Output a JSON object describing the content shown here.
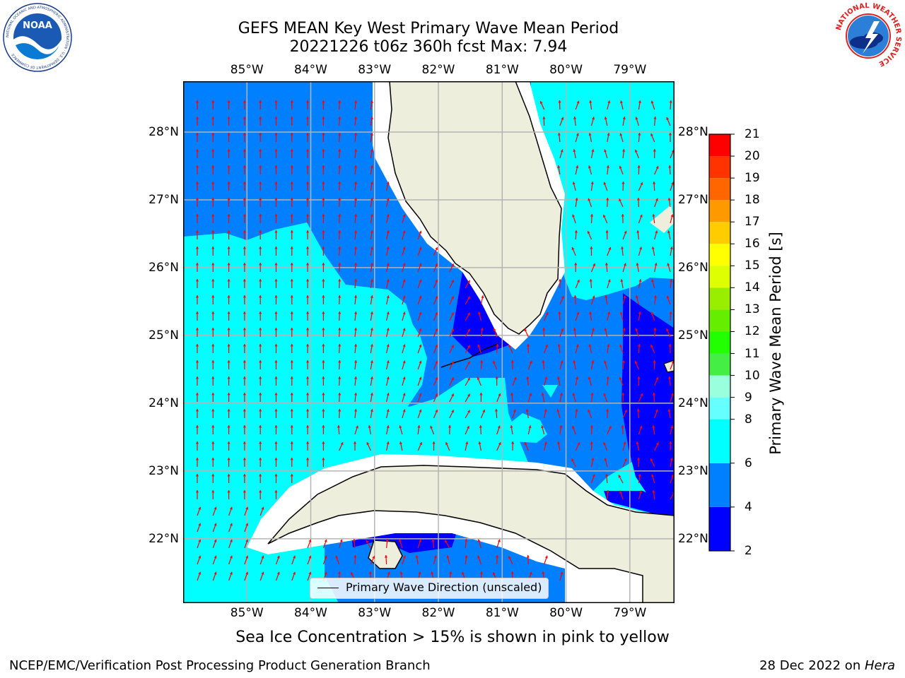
{
  "title": {
    "line1": "GEFS MEAN Key West Primary Wave Mean Period",
    "line2": "20221226 t06z 360h fcst   Max: 7.94"
  },
  "logos": {
    "left": "noaa-logo",
    "right": "national-weather-service-logo",
    "left_text": "NOAA",
    "left_ring": "NATIONAL OCEANIC AND ATMOSPHERIC ADMINISTRATION · U.S. DEPARTMENT OF COMMERCE",
    "right_ring": "NATIONAL WEATHER SERVICE"
  },
  "map": {
    "lon_labels": [
      "85°W",
      "84°W",
      "83°W",
      "82°W",
      "81°W",
      "80°W",
      "79°W"
    ],
    "lat_labels": [
      "28°N",
      "27°N",
      "26°N",
      "25°N",
      "24°N",
      "23°N",
      "22°N"
    ],
    "lon_values": [
      -85,
      -84,
      -83,
      -82,
      -81,
      -80,
      -79
    ],
    "lat_values": [
      28,
      27,
      26,
      25,
      24,
      23,
      22
    ],
    "lon_range": [
      -86,
      -78.3
    ],
    "lat_range": [
      21.05,
      28.75
    ],
    "legend_text": "Primary Wave Direction (unscaled)",
    "colors": {
      "band_2_4": "#0000ff",
      "band_4_6": "#0080ff",
      "band_6_8": "#00ffff",
      "land": "#eeeedc",
      "arrows": "#ff0000",
      "grid": "#b4b4b4"
    }
  },
  "colorbar": {
    "label": "Primary Wave Mean Period [s]",
    "ticks": [
      "21",
      "20",
      "19",
      "18",
      "17",
      "16",
      "15",
      "14",
      "13",
      "12",
      "11",
      "10",
      "9",
      "8",
      "6",
      "4",
      "2"
    ],
    "bands": [
      {
        "from": 2,
        "to": 4,
        "color": "#0000ff"
      },
      {
        "from": 4,
        "to": 6,
        "color": "#0080ff"
      },
      {
        "from": 6,
        "to": 8,
        "color": "#00ffff"
      },
      {
        "from": 8,
        "to": 9,
        "color": "#66ffff"
      },
      {
        "from": 9,
        "to": 10,
        "color": "#99ffdd"
      },
      {
        "from": 10,
        "to": 11,
        "color": "#44ee44"
      },
      {
        "from": 11,
        "to": 12,
        "color": "#22ff00"
      },
      {
        "from": 12,
        "to": 13,
        "color": "#66ee00"
      },
      {
        "from": 13,
        "to": 14,
        "color": "#99ee00"
      },
      {
        "from": 14,
        "to": 15,
        "color": "#ddff00"
      },
      {
        "from": 15,
        "to": 16,
        "color": "#ffff00"
      },
      {
        "from": 16,
        "to": 17,
        "color": "#ffcc00"
      },
      {
        "from": 17,
        "to": 18,
        "color": "#ff9900"
      },
      {
        "from": 18,
        "to": 19,
        "color": "#ff6600"
      },
      {
        "from": 19,
        "to": 20,
        "color": "#ff3300"
      },
      {
        "from": 20,
        "to": 21,
        "color": "#ff0000"
      }
    ]
  },
  "caption": "Sea Ice Concentration > 15% is shown in pink to yellow",
  "footer": {
    "left": "NCEP/EMC/Verification Post Processing Product Generation Branch",
    "right_date": "28 Dec 2022 on ",
    "right_machine": "Hera"
  }
}
